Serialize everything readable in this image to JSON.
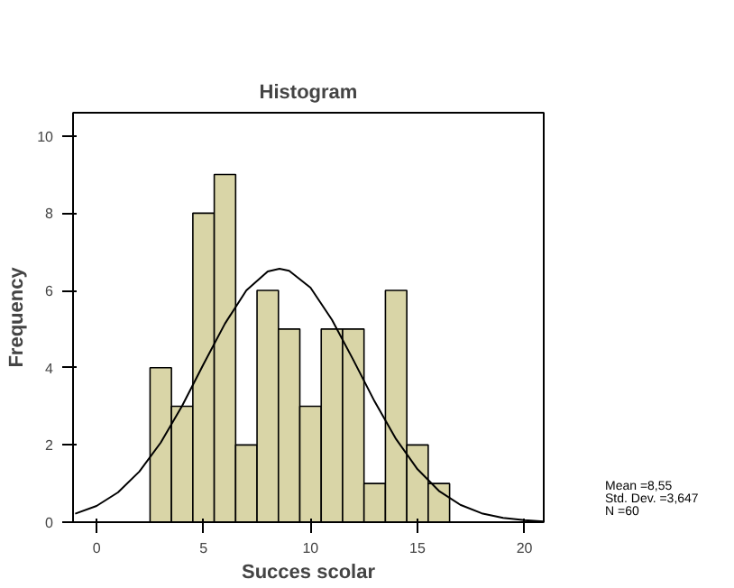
{
  "chart_data": {
    "type": "histogram",
    "title": "Histogram",
    "xlabel": "Succes scolar",
    "ylabel": "Frequency",
    "xlim": [
      -1.1,
      20.9
    ],
    "ylim": [
      0,
      10.6
    ],
    "xticks": [
      0,
      5,
      10,
      15,
      20
    ],
    "yticks": [
      0,
      2,
      4,
      6,
      8,
      10
    ],
    "grid": false,
    "series": [
      {
        "color": "#d9d5a7",
        "bins": [
          2.5,
          3.5,
          4.5,
          5.5,
          6.5,
          7.5,
          8.5,
          9.5,
          10.5,
          11.5,
          12.5,
          13.5,
          14.5,
          15.5,
          16.5
        ],
        "values": [
          4,
          3,
          8,
          9,
          2,
          6,
          5,
          3,
          5,
          5,
          1,
          6,
          2,
          1
        ]
      },
      {
        "type": "line",
        "color": "#000000",
        "x": [
          -1,
          0,
          1,
          2,
          3,
          4,
          5,
          6,
          7,
          8,
          8.55,
          9,
          10,
          11,
          12,
          13,
          14,
          15,
          16,
          17,
          18,
          19,
          20,
          20.9
        ],
        "values": [
          0.22,
          0.42,
          0.77,
          1.31,
          2.06,
          3.01,
          4.09,
          5.14,
          6.0,
          6.49,
          6.56,
          6.51,
          6.07,
          5.24,
          4.2,
          3.12,
          2.15,
          1.37,
          0.81,
          0.45,
          0.23,
          0.11,
          0.05,
          0.02
        ]
      }
    ],
    "annotations": [
      "Mean =8,55",
      "Std. Dev. =3,647",
      "N =60"
    ]
  }
}
